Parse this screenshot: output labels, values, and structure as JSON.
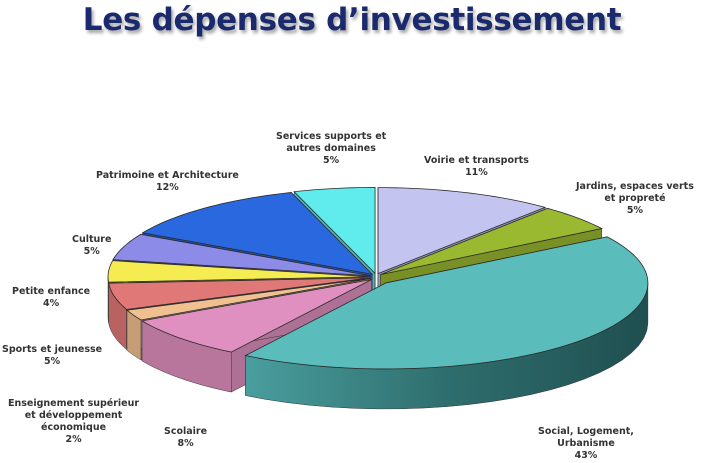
{
  "title": "Les dépenses d’investissement",
  "chart_data": {
    "type": "pie",
    "title": "Les dépenses d’investissement",
    "style": "3d-exploded",
    "categories": [
      "Voirie et transports",
      "Jardins, espaces verts et propreté",
      "Social, Logement, Urbanisme",
      "Scolaire",
      "Enseignement supérieur et développement économique",
      "Sports et jeunesse",
      "Petite enfance",
      "Culture",
      "Patrimoine et Architecture",
      "Services supports et autres domaines"
    ],
    "values": [
      11,
      5,
      43,
      8,
      2,
      5,
      4,
      5,
      12,
      5
    ],
    "unit": "%",
    "colors": [
      "#c4c4f0",
      "#9ab830",
      "#5bbcbc",
      "#e090c0",
      "#f0c090",
      "#e07878",
      "#f4ec50",
      "#8c8ce8",
      "#2a68e0",
      "#60ecec"
    ],
    "legend": "none (data labels)"
  },
  "labels": [
    {
      "name": "Services supports et",
      "name2": "autres domaines",
      "pct": "5%"
    },
    {
      "name": "Voirie et transports",
      "pct": "11%"
    },
    {
      "name": "Jardins, espaces verts",
      "name2": "et propreté",
      "pct": "5%"
    },
    {
      "name": "Patrimoine et Architecture",
      "pct": "12%"
    },
    {
      "name": "Culture",
      "pct": "5%"
    },
    {
      "name": "Petite enfance",
      "pct": "4%"
    },
    {
      "name": "Sports et jeunesse",
      "pct": "5%"
    },
    {
      "name": "Enseignement supérieur",
      "name2": "et développement",
      "name3": "économique",
      "pct": "2%"
    },
    {
      "name": "Scolaire",
      "pct": "8%"
    },
    {
      "name": "Social, Logement,",
      "name2": "Urbanisme",
      "pct": "43%"
    }
  ]
}
